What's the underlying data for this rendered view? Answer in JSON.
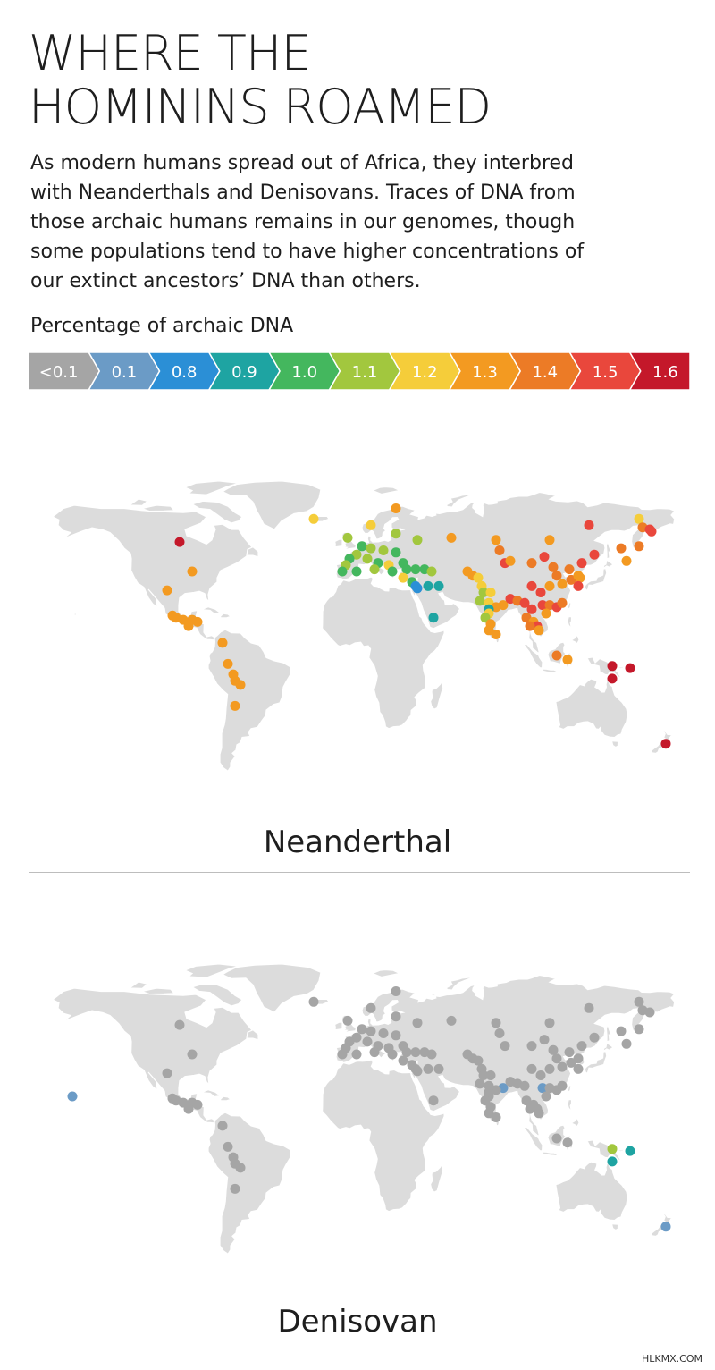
{
  "title_line1": "WHERE THE",
  "title_line2": "HOMININS ROAMED",
  "intro": "As modern humans spread out of Africa, they interbred with Neanderthals and Denisovans. Traces of DNA from those archaic humans remains in our genomes, though some populations tend to have higher concentrations of our extinct ancestors’ DNA than others.",
  "legend": {
    "title": "Percentage of archaic DNA",
    "bins": [
      {
        "label": "<0.1",
        "color": "#a5a5a5"
      },
      {
        "label": "0.1",
        "color": "#6b9bc6"
      },
      {
        "label": "0.8",
        "color": "#2b8fd6"
      },
      {
        "label": "0.9",
        "color": "#1ea4a2"
      },
      {
        "label": "1.0",
        "color": "#44b75e"
      },
      {
        "label": "1.1",
        "color": "#a2c73e"
      },
      {
        "label": "1.2",
        "color": "#f5cd3a"
      },
      {
        "label": "1.3",
        "color": "#f39a21"
      },
      {
        "label": "1.4",
        "color": "#ec7b26"
      },
      {
        "label": "1.5",
        "color": "#e9473c"
      },
      {
        "label": "1.6",
        "color": "#c4182a"
      }
    ]
  },
  "maps": [
    {
      "label": "Neanderthal",
      "points": [
        [
          "1.6",
          -97,
          54
        ],
        [
          "1.3",
          -90,
          40
        ],
        [
          "1.3",
          -104,
          31
        ],
        [
          "1.3",
          -101,
          19
        ],
        [
          "1.3",
          -99,
          18
        ],
        [
          "1.3",
          -95,
          17
        ],
        [
          "1.3",
          -90,
          17
        ],
        [
          "1.3",
          -87,
          16
        ],
        [
          "1.3",
          -92,
          14
        ],
        [
          "1.3",
          -73,
          6
        ],
        [
          "1.3",
          -70,
          -4
        ],
        [
          "1.3",
          -67,
          -9
        ],
        [
          "1.3",
          -66,
          -12
        ],
        [
          "1.3",
          -63,
          -14
        ],
        [
          "1.3",
          -66,
          -24
        ],
        [
          "1.2",
          -22,
          65
        ],
        [
          "1.2",
          10,
          62
        ],
        [
          "1.3",
          24,
          70
        ],
        [
          "1.1",
          24,
          58
        ],
        [
          "1.1",
          36,
          55
        ],
        [
          "1.3",
          55,
          56
        ],
        [
          "1.1",
          -3,
          56
        ],
        [
          "1.0",
          5,
          52
        ],
        [
          "1.1",
          10,
          51
        ],
        [
          "1.1",
          17,
          50
        ],
        [
          "1.0",
          24,
          49
        ],
        [
          "1.1",
          2,
          48
        ],
        [
          "1.0",
          -2,
          46
        ],
        [
          "1.1",
          8,
          46
        ],
        [
          "1.0",
          14,
          44
        ],
        [
          "1.2",
          20,
          43
        ],
        [
          "1.0",
          28,
          44
        ],
        [
          "1.1",
          -4,
          43
        ],
        [
          "1.0",
          -6,
          40
        ],
        [
          "1.0",
          2,
          40
        ],
        [
          "1.1",
          12,
          41
        ],
        [
          "1.0",
          22,
          40
        ],
        [
          "1.0",
          30,
          41
        ],
        [
          "1.0",
          35,
          41
        ],
        [
          "1.0",
          40,
          41
        ],
        [
          "1.1",
          44,
          40
        ],
        [
          "1.0",
          33,
          35
        ],
        [
          "0.8",
          35,
          33
        ],
        [
          "0.8",
          36,
          32
        ],
        [
          "0.9",
          42,
          33
        ],
        [
          "0.9",
          48,
          33
        ],
        [
          "0.9",
          45,
          18
        ],
        [
          "1.2",
          28,
          37
        ],
        [
          "1.3",
          64,
          40
        ],
        [
          "1.3",
          67,
          38
        ],
        [
          "1.2",
          70,
          37
        ],
        [
          "1.2",
          72,
          33
        ],
        [
          "1.1",
          73,
          30
        ],
        [
          "1.1",
          71,
          26
        ],
        [
          "1.2",
          77,
          30
        ],
        [
          "1.2",
          76,
          25
        ],
        [
          "1.3",
          80,
          23
        ],
        [
          "1.3",
          84,
          24
        ],
        [
          "0.9",
          76,
          22
        ],
        [
          "1.2",
          76,
          20
        ],
        [
          "1.1",
          74,
          18
        ],
        [
          "1.3",
          77,
          15
        ],
        [
          "1.3",
          76,
          12
        ],
        [
          "1.3",
          80,
          10
        ],
        [
          "1.5",
          88,
          27
        ],
        [
          "1.4",
          92,
          26
        ],
        [
          "1.5",
          96,
          25
        ],
        [
          "1.5",
          100,
          22
        ],
        [
          "1.4",
          97,
          18
        ],
        [
          "1.3",
          101,
          16
        ],
        [
          "1.5",
          103,
          14
        ],
        [
          "1.4",
          99,
          14
        ],
        [
          "1.3",
          104,
          12
        ],
        [
          "1.5",
          106,
          24
        ],
        [
          "1.4",
          110,
          24
        ],
        [
          "1.3",
          108,
          20
        ],
        [
          "1.5",
          114,
          23
        ],
        [
          "1.4",
          117,
          25
        ],
        [
          "1.3",
          110,
          33
        ],
        [
          "1.3",
          117,
          34
        ],
        [
          "1.4",
          114,
          38
        ],
        [
          "1.5",
          100,
          33
        ],
        [
          "1.5",
          105,
          30
        ],
        [
          "1.4",
          122,
          36
        ],
        [
          "1.3",
          126,
          38
        ],
        [
          "1.3",
          127,
          37
        ],
        [
          "1.5",
          128,
          44
        ],
        [
          "1.5",
          135,
          48
        ],
        [
          "1.4",
          121,
          41
        ],
        [
          "1.5",
          126,
          33
        ],
        [
          "1.5",
          107,
          47
        ],
        [
          "1.4",
          100,
          44
        ],
        [
          "1.5",
          85,
          44
        ],
        [
          "1.4",
          82,
          50
        ],
        [
          "1.3",
          80,
          55
        ],
        [
          "1.4",
          112,
          42
        ],
        [
          "1.3",
          88,
          45
        ],
        [
          "1.5",
          132,
          62
        ],
        [
          "1.3",
          110,
          55
        ],
        [
          "1.2",
          160,
          65
        ],
        [
          "1.4",
          162,
          61
        ],
        [
          "1.5",
          166,
          60
        ],
        [
          "1.5",
          167,
          59
        ],
        [
          "1.4",
          160,
          52
        ],
        [
          "1.4",
          150,
          51
        ],
        [
          "1.3",
          153,
          45
        ],
        [
          "1.4",
          114,
          0
        ],
        [
          "1.3",
          120,
          -2
        ],
        [
          "1.6",
          145,
          -5
        ],
        [
          "1.6",
          155,
          -6
        ],
        [
          "1.6",
          145,
          -11
        ],
        [
          "1.6",
          175,
          -42
        ]
      ]
    },
    {
      "label": "Denisovan",
      "points": [
        [
          "<0.1",
          -97,
          54
        ],
        [
          "<0.1",
          -90,
          40
        ],
        [
          "<0.1",
          -104,
          31
        ],
        [
          "<0.1",
          -101,
          19
        ],
        [
          "<0.1",
          -99,
          18
        ],
        [
          "<0.1",
          -95,
          17
        ],
        [
          "<0.1",
          -90,
          17
        ],
        [
          "<0.1",
          -87,
          16
        ],
        [
          "<0.1",
          -92,
          14
        ],
        [
          "<0.1",
          -73,
          6
        ],
        [
          "<0.1",
          -70,
          -4
        ],
        [
          "<0.1",
          -67,
          -9
        ],
        [
          "<0.1",
          -66,
          -12
        ],
        [
          "<0.1",
          -63,
          -14
        ],
        [
          "<0.1",
          -66,
          -24
        ],
        [
          "<0.1",
          -22,
          65
        ],
        [
          "<0.1",
          10,
          62
        ],
        [
          "<0.1",
          24,
          70
        ],
        [
          "<0.1",
          24,
          58
        ],
        [
          "<0.1",
          36,
          55
        ],
        [
          "<0.1",
          55,
          56
        ],
        [
          "<0.1",
          -3,
          56
        ],
        [
          "<0.1",
          5,
          52
        ],
        [
          "<0.1",
          10,
          51
        ],
        [
          "<0.1",
          17,
          50
        ],
        [
          "<0.1",
          24,
          49
        ],
        [
          "<0.1",
          2,
          48
        ],
        [
          "<0.1",
          -2,
          46
        ],
        [
          "<0.1",
          8,
          46
        ],
        [
          "<0.1",
          14,
          44
        ],
        [
          "<0.1",
          20,
          43
        ],
        [
          "<0.1",
          28,
          44
        ],
        [
          "<0.1",
          -4,
          43
        ],
        [
          "<0.1",
          -6,
          40
        ],
        [
          "<0.1",
          2,
          40
        ],
        [
          "<0.1",
          12,
          41
        ],
        [
          "<0.1",
          22,
          40
        ],
        [
          "<0.1",
          30,
          41
        ],
        [
          "<0.1",
          35,
          41
        ],
        [
          "<0.1",
          40,
          41
        ],
        [
          "<0.1",
          44,
          40
        ],
        [
          "<0.1",
          33,
          35
        ],
        [
          "<0.1",
          35,
          33
        ],
        [
          "<0.1",
          36,
          32
        ],
        [
          "<0.1",
          42,
          33
        ],
        [
          "<0.1",
          48,
          33
        ],
        [
          "<0.1",
          45,
          18
        ],
        [
          "<0.1",
          28,
          37
        ],
        [
          "<0.1",
          64,
          40
        ],
        [
          "<0.1",
          67,
          38
        ],
        [
          "<0.1",
          70,
          37
        ],
        [
          "<0.1",
          72,
          33
        ],
        [
          "<0.1",
          73,
          30
        ],
        [
          "<0.1",
          71,
          26
        ],
        [
          "<0.1",
          77,
          30
        ],
        [
          "0.1",
          84,
          24
        ],
        [
          "<0.1",
          76,
          25
        ],
        [
          "<0.1",
          80,
          23
        ],
        [
          "<0.1",
          76,
          22
        ],
        [
          "<0.1",
          76,
          20
        ],
        [
          "<0.1",
          74,
          18
        ],
        [
          "<0.1",
          77,
          15
        ],
        [
          "<0.1",
          76,
          12
        ],
        [
          "<0.1",
          80,
          10
        ],
        [
          "<0.1",
          88,
          27
        ],
        [
          "<0.1",
          92,
          26
        ],
        [
          "<0.1",
          96,
          25
        ],
        [
          "<0.1",
          97,
          18
        ],
        [
          "<0.1",
          101,
          16
        ],
        [
          "<0.1",
          103,
          14
        ],
        [
          "<0.1",
          99,
          14
        ],
        [
          "<0.1",
          104,
          12
        ],
        [
          "0.1",
          106,
          24
        ],
        [
          "<0.1",
          110,
          24
        ],
        [
          "<0.1",
          108,
          20
        ],
        [
          "<0.1",
          114,
          23
        ],
        [
          "<0.1",
          117,
          25
        ],
        [
          "<0.1",
          110,
          33
        ],
        [
          "<0.1",
          117,
          34
        ],
        [
          "<0.1",
          114,
          38
        ],
        [
          "<0.1",
          100,
          33
        ],
        [
          "<0.1",
          105,
          30
        ],
        [
          "<0.1",
          122,
          36
        ],
        [
          "<0.1",
          126,
          38
        ],
        [
          "<0.1",
          128,
          44
        ],
        [
          "<0.1",
          135,
          48
        ],
        [
          "<0.1",
          121,
          41
        ],
        [
          "<0.1",
          126,
          33
        ],
        [
          "<0.1",
          107,
          47
        ],
        [
          "<0.1",
          100,
          44
        ],
        [
          "<0.1",
          85,
          44
        ],
        [
          "<0.1",
          82,
          50
        ],
        [
          "<0.1",
          80,
          55
        ],
        [
          "<0.1",
          112,
          42
        ],
        [
          "<0.1",
          132,
          62
        ],
        [
          "<0.1",
          110,
          55
        ],
        [
          "<0.1",
          160,
          65
        ],
        [
          "<0.1",
          162,
          61
        ],
        [
          "<0.1",
          166,
          60
        ],
        [
          "<0.1",
          160,
          52
        ],
        [
          "<0.1",
          150,
          51
        ],
        [
          "<0.1",
          153,
          45
        ],
        [
          "<0.1",
          114,
          0
        ],
        [
          "<0.1",
          120,
          -2
        ],
        [
          "1.1",
          145,
          -5
        ],
        [
          "0.9",
          155,
          -6
        ],
        [
          "0.9",
          145,
          -11
        ],
        [
          "0.1",
          175,
          -42
        ],
        [
          "0.1",
          -157,
          20
        ]
      ]
    }
  ],
  "credit": "HLKMX.COM"
}
